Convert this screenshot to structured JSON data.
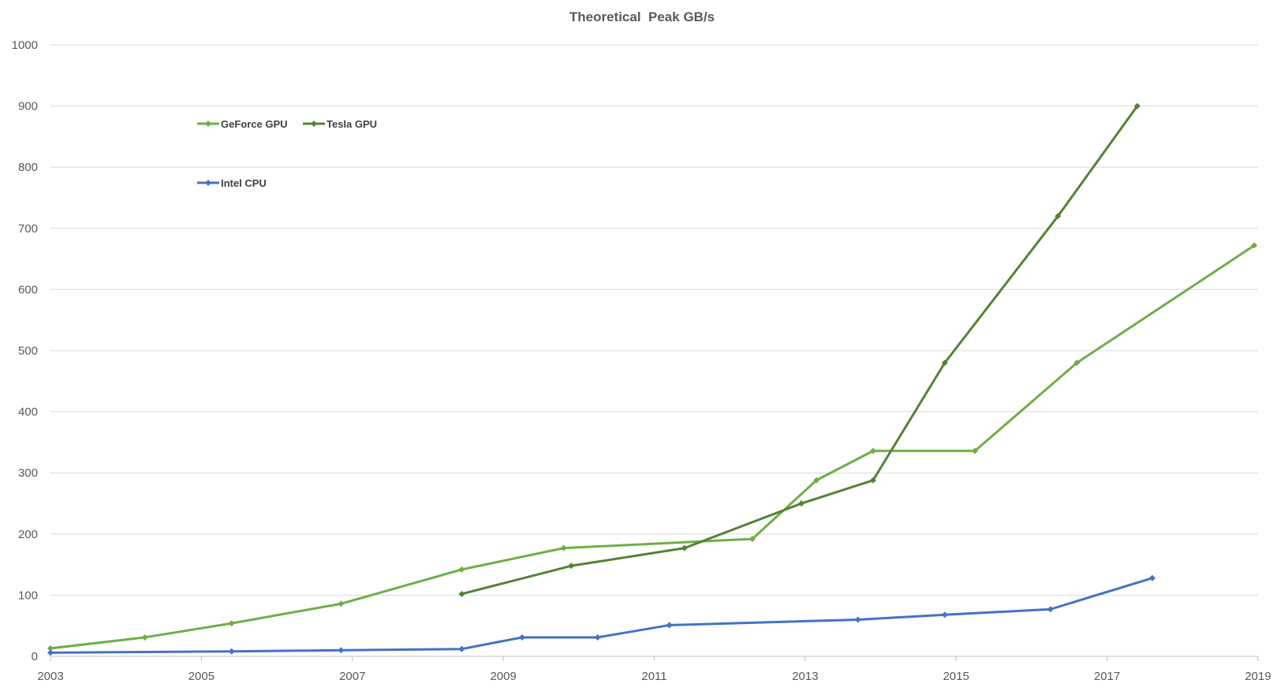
{
  "chart_data": {
    "type": "line",
    "title": "Theoretical  Peak GB/s",
    "xlabel": "",
    "ylabel": "",
    "xlim": [
      2003,
      2019
    ],
    "ylim": [
      0,
      1000
    ],
    "x_ticks": [
      2003,
      2005,
      2007,
      2009,
      2011,
      2013,
      2015,
      2017,
      2019
    ],
    "y_ticks": [
      0,
      100,
      200,
      300,
      400,
      500,
      600,
      700,
      800,
      900,
      1000
    ],
    "grid": true,
    "legend_position": "top-left",
    "series": [
      {
        "name": "GeForce GPU",
        "color": "#70ad47",
        "marker": "diamond",
        "x": [
          2003.0,
          2004.25,
          2005.4,
          2006.85,
          2008.45,
          2009.8,
          2012.3,
          2013.15,
          2013.9,
          2015.25,
          2016.6,
          2018.95
        ],
        "y": [
          13,
          31,
          54,
          86,
          142,
          177,
          192,
          288,
          336,
          336,
          480,
          672
        ]
      },
      {
        "name": "Tesla GPU",
        "color": "#548235",
        "marker": "diamond",
        "x": [
          2008.45,
          2009.9,
          2011.4,
          2012.95,
          2013.9,
          2014.85,
          2016.35,
          2017.4
        ],
        "y": [
          102,
          148,
          177,
          250,
          288,
          480,
          720,
          900
        ]
      },
      {
        "name": "Intel CPU",
        "color": "#4472c4",
        "marker": "diamond",
        "x": [
          2003.0,
          2005.4,
          2006.85,
          2008.45,
          2009.25,
          2010.25,
          2011.2,
          2013.7,
          2014.85,
          2016.25,
          2017.6
        ],
        "y": [
          6,
          8,
          10,
          12,
          31,
          31,
          51,
          60,
          68,
          77,
          128
        ]
      }
    ]
  }
}
